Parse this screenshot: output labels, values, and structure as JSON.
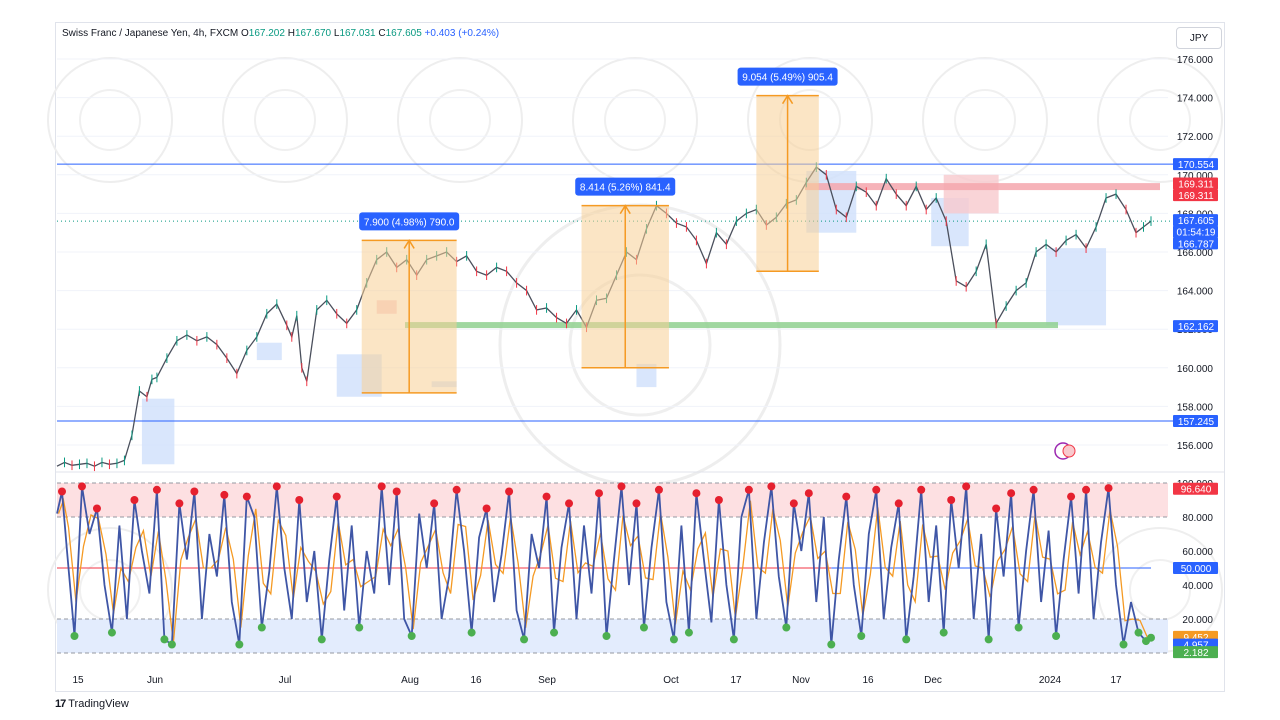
{
  "header": {
    "symbol": "Swiss Franc / Japanese Yen, 4h, FXCM",
    "open_label": "O",
    "open": "167.202",
    "high_label": "H",
    "high": "167.670",
    "low_label": "L",
    "low": "167.031",
    "close_label": "C",
    "close": "167.605",
    "change": "+0.403 (+0.24%)"
  },
  "currency_button": "JPY",
  "footer": {
    "brand": "TradingView",
    "logo": "17"
  },
  "colors": {
    "up": "#089981",
    "down": "#f23645",
    "accent": "#2962ff",
    "orange": "#f59a23",
    "stoch_k": "#3f56a6"
  },
  "chart_data": {
    "type": "line",
    "price_axis": {
      "ticks": [
        156,
        158,
        160,
        162,
        164,
        166,
        168,
        170,
        172,
        174,
        176
      ],
      "tick_labels": [
        "156.000",
        "158.000",
        "160.000",
        "162.000",
        "164.000",
        "166.000",
        "168.000",
        "170.000",
        "172.000",
        "174.000",
        "176.000"
      ]
    },
    "time_axis": {
      "labels": [
        "15",
        "Jun",
        "Jul",
        "Aug",
        "16",
        "Sep",
        "Oct",
        "17",
        "Nov",
        "16",
        "Dec",
        "2024",
        "17"
      ]
    },
    "price_series": [
      [
        0,
        154.9
      ],
      [
        3,
        155.1
      ],
      [
        6,
        154.95
      ],
      [
        9,
        155.0
      ],
      [
        12,
        155.05
      ],
      [
        15,
        154.9
      ],
      [
        18,
        155.1
      ],
      [
        21,
        155.0
      ],
      [
        24,
        155.05
      ],
      [
        27,
        155.2
      ],
      [
        30,
        156.5
      ],
      [
        33,
        158.8
      ],
      [
        36,
        158.5
      ],
      [
        38,
        159.4
      ],
      [
        40,
        159.5
      ],
      [
        44,
        160.5
      ],
      [
        48,
        161.4
      ],
      [
        52,
        161.7
      ],
      [
        56,
        161.4
      ],
      [
        60,
        161.6
      ],
      [
        64,
        161.2
      ],
      [
        68,
        160.5
      ],
      [
        72,
        159.7
      ],
      [
        76,
        160.9
      ],
      [
        80,
        161.6
      ],
      [
        84,
        162.8
      ],
      [
        88,
        163.3
      ],
      [
        92,
        162.2
      ],
      [
        94,
        161.6
      ],
      [
        96,
        162.7
      ],
      [
        98,
        160.0
      ],
      [
        100,
        159.3
      ],
      [
        104,
        163.0
      ],
      [
        108,
        163.5
      ],
      [
        112,
        162.8
      ],
      [
        116,
        162.3
      ],
      [
        120,
        163.0
      ],
      [
        124,
        164.4
      ],
      [
        128,
        165.6
      ],
      [
        132,
        166.0
      ],
      [
        136,
        165.2
      ],
      [
        140,
        165.6
      ],
      [
        144,
        164.8
      ],
      [
        148,
        165.6
      ],
      [
        152,
        165.8
      ],
      [
        156,
        166.0
      ],
      [
        160,
        165.5
      ],
      [
        164,
        165.8
      ],
      [
        168,
        165.0
      ],
      [
        172,
        164.8
      ],
      [
        176,
        165.2
      ],
      [
        180,
        165.0
      ],
      [
        184,
        164.4
      ],
      [
        188,
        164.0
      ],
      [
        192,
        163.0
      ],
      [
        196,
        163.1
      ],
      [
        200,
        162.6
      ],
      [
        204,
        162.3
      ],
      [
        208,
        163.0
      ],
      [
        212,
        162.1
      ],
      [
        216,
        163.5
      ],
      [
        220,
        163.6
      ],
      [
        224,
        164.8
      ],
      [
        228,
        166.0
      ],
      [
        232,
        165.6
      ],
      [
        236,
        167.2
      ],
      [
        240,
        168.4
      ],
      [
        244,
        168.0
      ],
      [
        248,
        167.5
      ],
      [
        252,
        167.3
      ],
      [
        256,
        166.6
      ],
      [
        260,
        165.4
      ],
      [
        264,
        167.0
      ],
      [
        268,
        166.4
      ],
      [
        272,
        167.6
      ],
      [
        276,
        168.0
      ],
      [
        280,
        168.2
      ],
      [
        284,
        167.4
      ],
      [
        288,
        167.8
      ],
      [
        292,
        168.5
      ],
      [
        296,
        168.7
      ],
      [
        300,
        169.6
      ],
      [
        304,
        170.4
      ],
      [
        308,
        170.0
      ],
      [
        312,
        168.2
      ],
      [
        316,
        167.8
      ],
      [
        320,
        169.4
      ],
      [
        324,
        169.1
      ],
      [
        328,
        168.4
      ],
      [
        332,
        169.8
      ],
      [
        336,
        169.0
      ],
      [
        340,
        168.4
      ],
      [
        344,
        169.4
      ],
      [
        348,
        168.2
      ],
      [
        352,
        168.8
      ],
      [
        356,
        167.6
      ],
      [
        360,
        164.5
      ],
      [
        364,
        164.2
      ],
      [
        368,
        165.0
      ],
      [
        372,
        166.4
      ],
      [
        376,
        162.3
      ],
      [
        380,
        163.2
      ],
      [
        384,
        164.0
      ],
      [
        388,
        164.4
      ],
      [
        392,
        166.0
      ],
      [
        396,
        166.4
      ],
      [
        400,
        166.0
      ],
      [
        404,
        166.6
      ],
      [
        408,
        166.9
      ],
      [
        412,
        166.2
      ],
      [
        416,
        167.3
      ],
      [
        420,
        168.8
      ],
      [
        424,
        169.0
      ],
      [
        428,
        168.2
      ],
      [
        432,
        167.0
      ],
      [
        435,
        167.3
      ],
      [
        438,
        167.6
      ]
    ],
    "measures": [
      {
        "label": "7.900 (4.98%) 790.0",
        "from": 158.7,
        "to": 166.6
      },
      {
        "label": "8.414 (5.26%) 841.4",
        "from": 160.0,
        "to": 168.4
      },
      {
        "label": "9.054 (5.49%) 905.4",
        "from": 165.0,
        "to": 174.1
      }
    ],
    "horizontal_levels": [
      170.554,
      169.311,
      162.162,
      157.245
    ],
    "price_tags": [
      {
        "value": "170.554",
        "price": 170.554,
        "color": "#2962ff"
      },
      {
        "value": "169.311",
        "price": 169.55,
        "color": "#f23645"
      },
      {
        "value": "169.311",
        "price": 168.95,
        "color": "#f23645"
      },
      {
        "value": "167.605",
        "price": 167.65,
        "color": "#2962ff"
      },
      {
        "value": "01:54:19",
        "price": 167.05,
        "color": "#2962ff"
      },
      {
        "value": "166.787",
        "price": 166.45,
        "color": "#2962ff"
      },
      {
        "value": "162.162",
        "price": 162.162,
        "color": "#2962ff"
      },
      {
        "value": "157.245",
        "price": 157.245,
        "color": "#2962ff"
      }
    ],
    "oscillator": {
      "axis_ticks": [
        100,
        80,
        60,
        40,
        20
      ],
      "axis_labels": [
        "100.000",
        "80.000",
        "60.000",
        "40.000",
        "20.000"
      ],
      "overbought": 80,
      "oversold": 20,
      "midline": 50,
      "k_series": [
        [
          0,
          82
        ],
        [
          2,
          95
        ],
        [
          4,
          60
        ],
        [
          7,
          10
        ],
        [
          10,
          98
        ],
        [
          13,
          70
        ],
        [
          16,
          85
        ],
        [
          19,
          40
        ],
        [
          22,
          12
        ],
        [
          25,
          75
        ],
        [
          28,
          20
        ],
        [
          31,
          90
        ],
        [
          34,
          60
        ],
        [
          37,
          35
        ],
        [
          40,
          96
        ],
        [
          43,
          8
        ],
        [
          46,
          5
        ],
        [
          49,
          88
        ],
        [
          52,
          55
        ],
        [
          55,
          95
        ],
        [
          58,
          20
        ],
        [
          61,
          70
        ],
        [
          64,
          45
        ],
        [
          67,
          93
        ],
        [
          70,
          30
        ],
        [
          73,
          5
        ],
        [
          76,
          92
        ],
        [
          79,
          80
        ],
        [
          82,
          15
        ],
        [
          85,
          48
        ],
        [
          88,
          98
        ],
        [
          91,
          50
        ],
        [
          94,
          20
        ],
        [
          97,
          90
        ],
        [
          100,
          30
        ],
        [
          103,
          60
        ],
        [
          106,
          8
        ],
        [
          109,
          55
        ],
        [
          112,
          92
        ],
        [
          115,
          25
        ],
        [
          118,
          75
        ],
        [
          121,
          15
        ],
        [
          124,
          60
        ],
        [
          127,
          35
        ],
        [
          130,
          98
        ],
        [
          133,
          40
        ],
        [
          136,
          95
        ],
        [
          139,
          20
        ],
        [
          142,
          10
        ],
        [
          145,
          82
        ],
        [
          148,
          50
        ],
        [
          151,
          88
        ],
        [
          154,
          20
        ],
        [
          157,
          45
        ],
        [
          160,
          96
        ],
        [
          163,
          60
        ],
        [
          166,
          12
        ],
        [
          169,
          68
        ],
        [
          172,
          85
        ],
        [
          175,
          30
        ],
        [
          178,
          58
        ],
        [
          181,
          95
        ],
        [
          184,
          25
        ],
        [
          187,
          8
        ],
        [
          190,
          70
        ],
        [
          193,
          50
        ],
        [
          196,
          92
        ],
        [
          199,
          12
        ],
        [
          202,
          62
        ],
        [
          205,
          88
        ],
        [
          208,
          20
        ],
        [
          211,
          75
        ],
        [
          214,
          35
        ],
        [
          217,
          94
        ],
        [
          220,
          10
        ],
        [
          223,
          55
        ],
        [
          226,
          98
        ],
        [
          229,
          40
        ],
        [
          232,
          88
        ],
        [
          235,
          15
        ],
        [
          238,
          62
        ],
        [
          241,
          96
        ],
        [
          244,
          30
        ],
        [
          247,
          8
        ],
        [
          250,
          75
        ],
        [
          253,
          12
        ],
        [
          256,
          94
        ],
        [
          259,
          55
        ],
        [
          262,
          18
        ],
        [
          265,
          90
        ],
        [
          268,
          40
        ],
        [
          271,
          8
        ],
        [
          274,
          80
        ],
        [
          277,
          96
        ],
        [
          280,
          20
        ],
        [
          283,
          65
        ],
        [
          286,
          98
        ],
        [
          289,
          45
        ],
        [
          292,
          15
        ],
        [
          295,
          88
        ],
        [
          298,
          60
        ],
        [
          301,
          94
        ],
        [
          304,
          30
        ],
        [
          307,
          80
        ],
        [
          310,
          5
        ],
        [
          313,
          55
        ],
        [
          316,
          92
        ],
        [
          319,
          40
        ],
        [
          322,
          10
        ],
        [
          325,
          70
        ],
        [
          328,
          96
        ],
        [
          331,
          20
        ],
        [
          334,
          62
        ],
        [
          337,
          88
        ],
        [
          340,
          8
        ],
        [
          343,
          45
        ],
        [
          346,
          96
        ],
        [
          349,
          30
        ],
        [
          352,
          75
        ],
        [
          355,
          12
        ],
        [
          358,
          90
        ],
        [
          361,
          50
        ],
        [
          364,
          98
        ],
        [
          367,
          20
        ],
        [
          370,
          70
        ],
        [
          373,
          8
        ],
        [
          376,
          85
        ],
        [
          379,
          45
        ],
        [
          382,
          94
        ],
        [
          385,
          15
        ],
        [
          388,
          60
        ],
        [
          391,
          96
        ],
        [
          394,
          30
        ],
        [
          397,
          72
        ],
        [
          400,
          10
        ],
        [
          403,
          55
        ],
        [
          406,
          92
        ],
        [
          409,
          35
        ],
        [
          412,
          96
        ],
        [
          415,
          20
        ],
        [
          418,
          65
        ],
        [
          421,
          97
        ],
        [
          424,
          40
        ],
        [
          427,
          5
        ],
        [
          430,
          30
        ],
        [
          433,
          12
        ],
        [
          436,
          7
        ],
        [
          438,
          9
        ]
      ],
      "tags": [
        {
          "value": "96.640",
          "level": 96.64,
          "color": "#f23645"
        },
        {
          "value": "50.000",
          "level": 50,
          "color": "#2962ff"
        },
        {
          "value": "9.452",
          "level": 9.452,
          "color": "#f59a23"
        },
        {
          "value": "4.957",
          "level": 4.957,
          "color": "#2962ff"
        },
        {
          "value": "2.182",
          "level": 0.5,
          "color": "#4caf50"
        }
      ]
    }
  }
}
